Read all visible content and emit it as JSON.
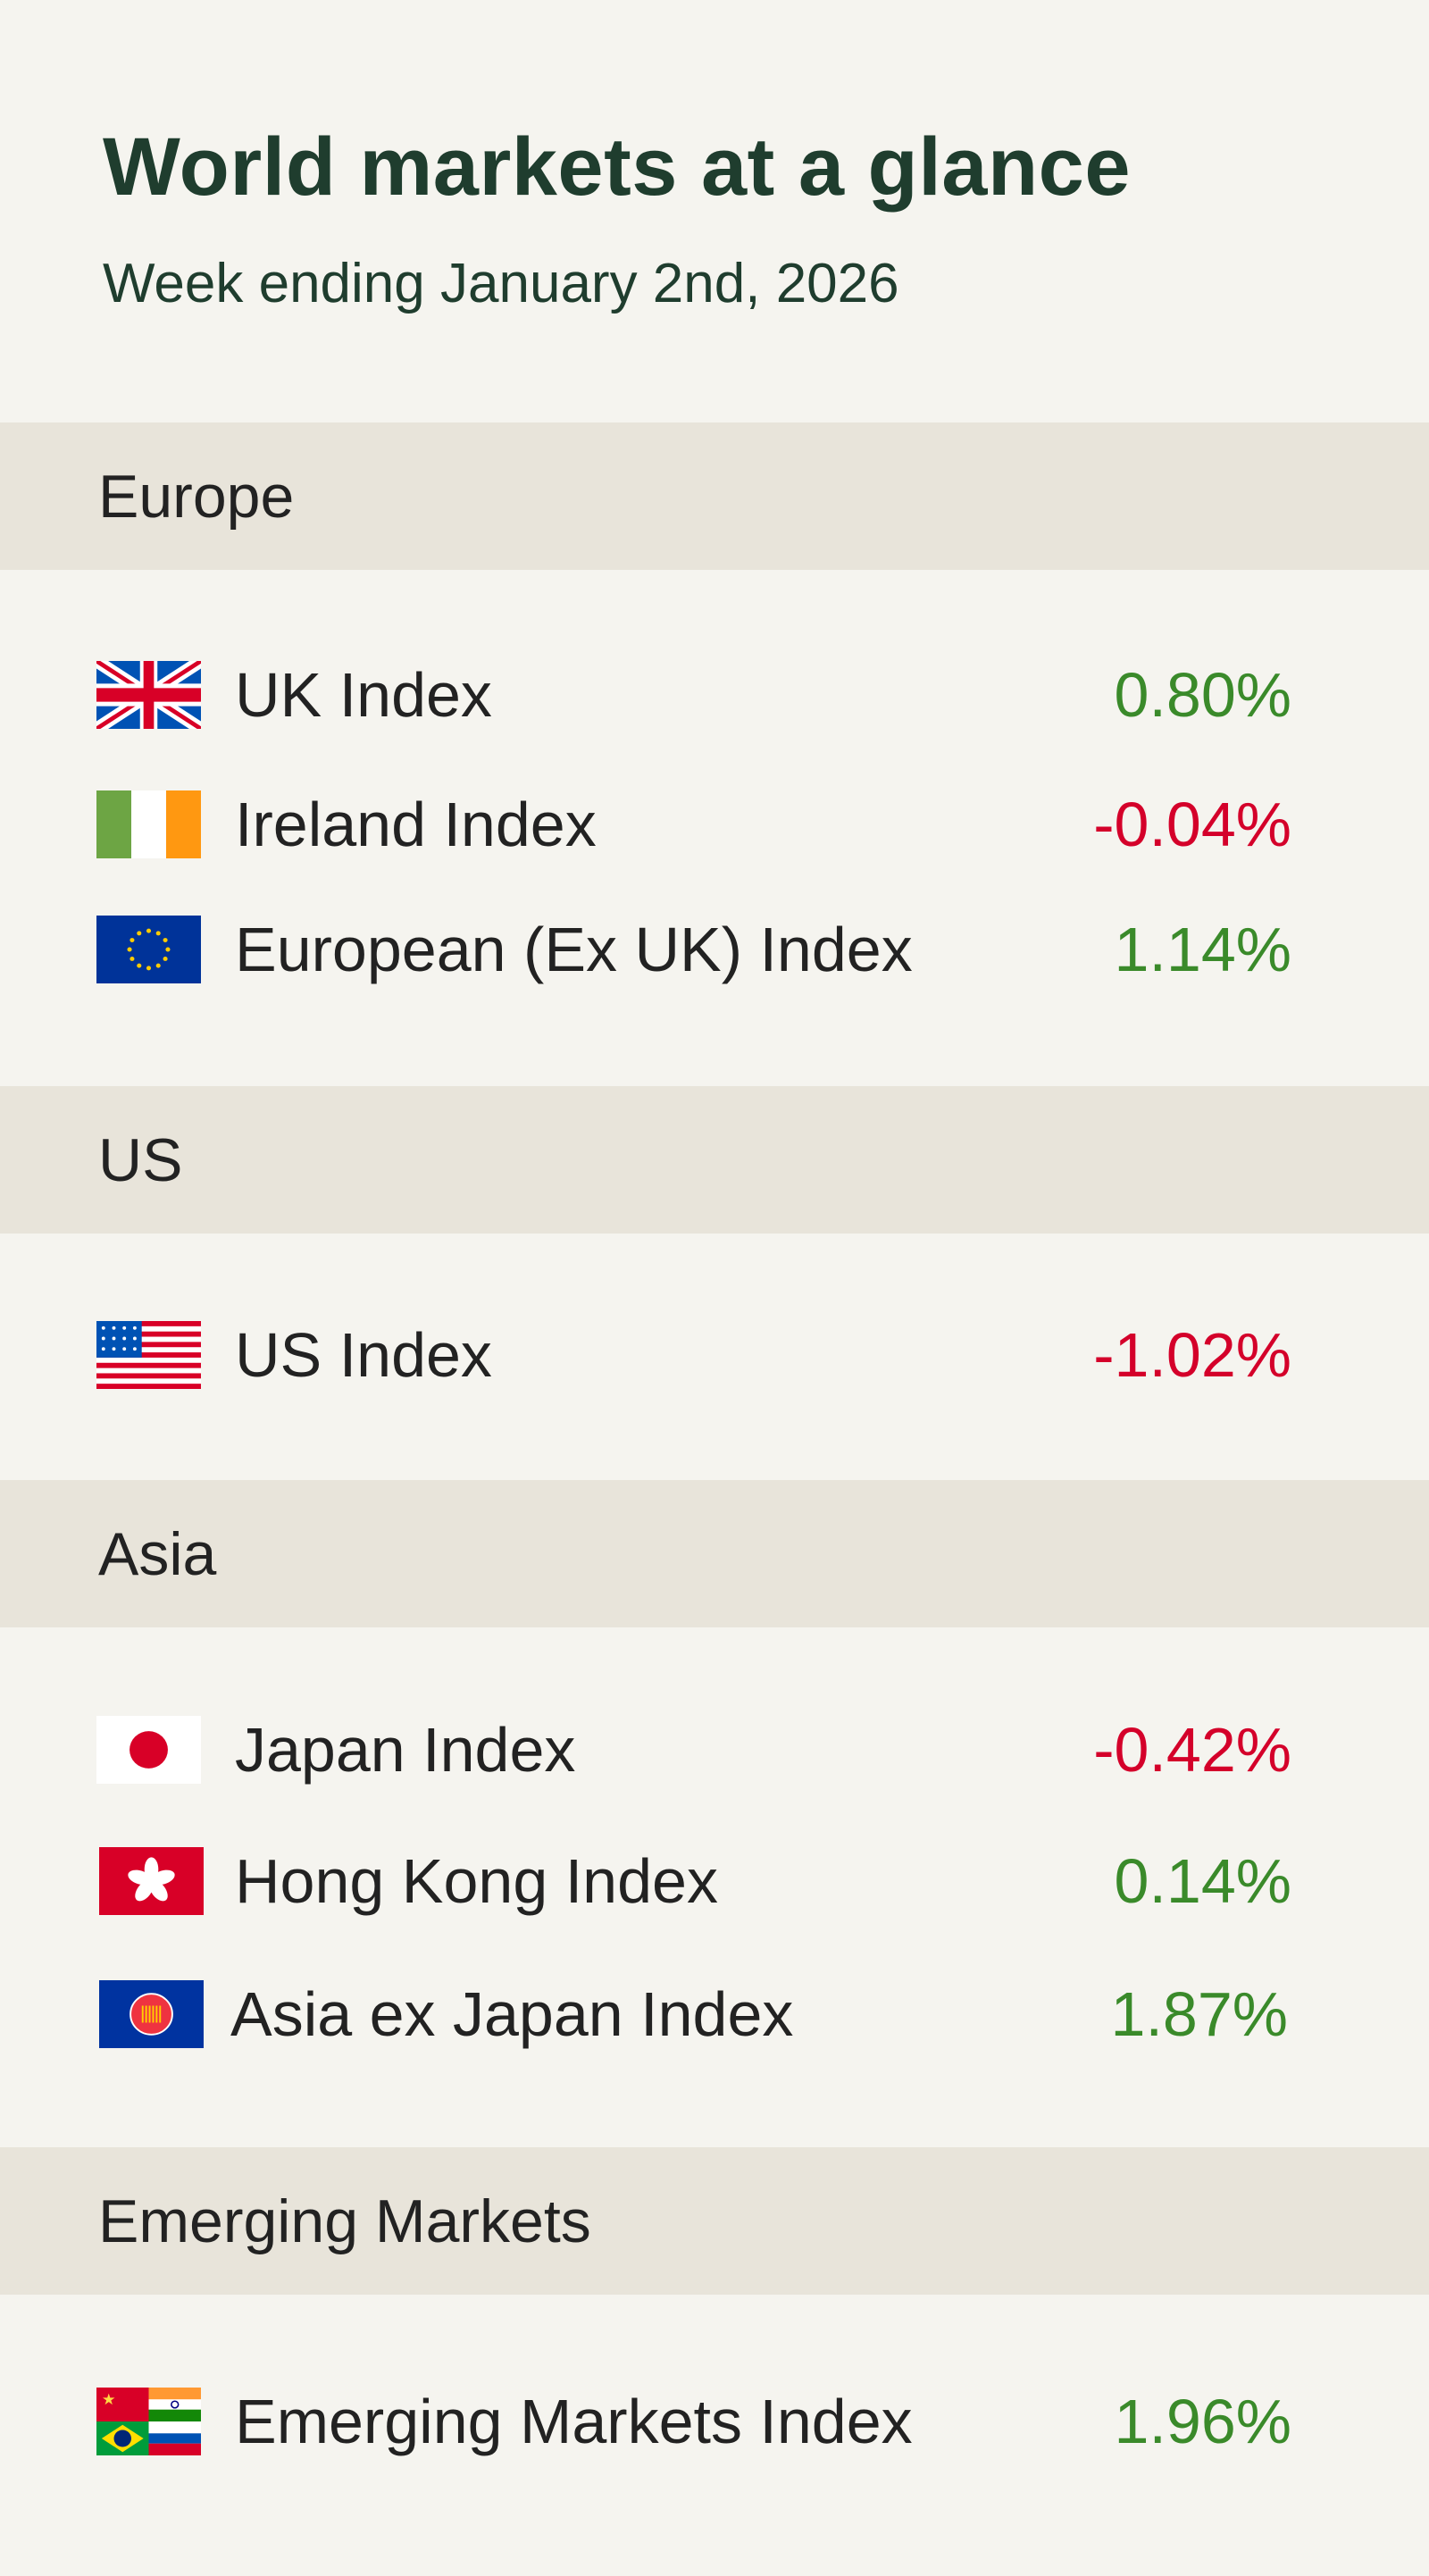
{
  "header": {
    "title": "World markets at a glance",
    "subtitle": "Week ending January 2nd, 2026"
  },
  "colors": {
    "positive": "#3a8a2a",
    "negative": "#d4002a",
    "title": "#1f3d2e",
    "band": "#e8e4da",
    "background": "#f5f4ef"
  },
  "sections": [
    {
      "name": "Europe",
      "rows": [
        {
          "flag": "uk-flag-icon",
          "label": "UK Index",
          "value": "0.80%"
        },
        {
          "flag": "ireland-flag-icon",
          "label": "Ireland Index",
          "value": "-0.04%"
        },
        {
          "flag": "eu-flag-icon",
          "label": "European (Ex UK) Index",
          "value": "1.14%"
        }
      ]
    },
    {
      "name": "US",
      "rows": [
        {
          "flag": "us-flag-icon",
          "label": "US Index",
          "value": "-1.02%"
        }
      ]
    },
    {
      "name": "Asia",
      "rows": [
        {
          "flag": "japan-flag-icon",
          "label": "Japan Index",
          "value": "-0.42%"
        },
        {
          "flag": "hong-kong-flag-icon",
          "label": "Hong Kong Index",
          "value": "0.14%"
        },
        {
          "flag": "asean-flag-icon",
          "label": "Asia ex Japan Index",
          "value": "1.87%"
        }
      ]
    },
    {
      "name": "Emerging Markets",
      "rows": [
        {
          "flag": "brics-flags-icon",
          "label": "Emerging Markets Index",
          "value": "1.96%"
        }
      ]
    }
  ]
}
